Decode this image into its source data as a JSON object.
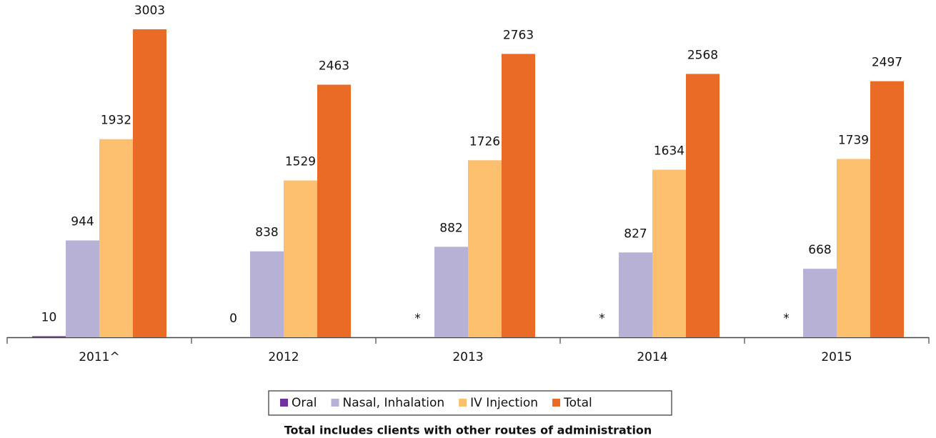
{
  "chart_data": {
    "type": "bar",
    "categories": [
      "2011^",
      "2012",
      "2013",
      "2014",
      "2015"
    ],
    "series": [
      {
        "name": "Oral",
        "color": "#7030a0",
        "values": [
          10,
          0,
          null,
          null,
          null
        ],
        "value_labels": [
          "10",
          "0",
          "*",
          "*",
          "*"
        ]
      },
      {
        "name": "Nasal, Inhalation",
        "color": "#b7b1d6",
        "values": [
          944,
          838,
          882,
          827,
          668
        ]
      },
      {
        "name": "IV Injection",
        "color": "#fbbf6e",
        "values": [
          1932,
          1529,
          1726,
          1634,
          1739
        ]
      },
      {
        "name": "Total",
        "color": "#e96b26",
        "values": [
          3003,
          2463,
          2763,
          2568,
          2497
        ]
      }
    ],
    "note": "Total includes clients with other routes of administration"
  }
}
